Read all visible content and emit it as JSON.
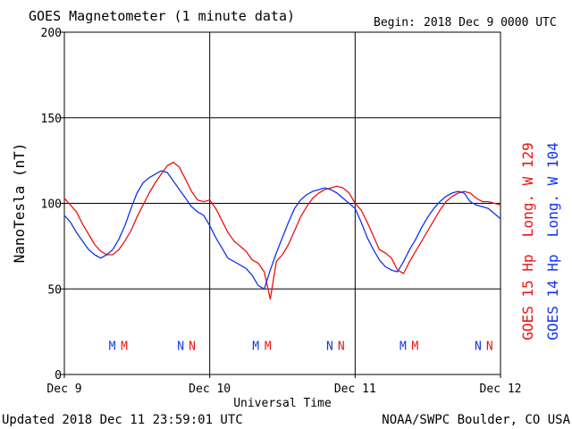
{
  "chart_data": {
    "type": "line",
    "title": "GOES Magnetometer (1 minute data)",
    "begin_label": "Begin:",
    "begin_value": "2018 Dec 9 0000 UTC",
    "xlabel": "Universal Time",
    "ylabel": "NanoTesla (nT)",
    "ylim": [
      0,
      200
    ],
    "xlim": [
      0,
      72
    ],
    "x_unit": "hours since 2018 Dec 9 0000 UTC",
    "yticks": [
      "0",
      "50",
      "100",
      "150",
      "200"
    ],
    "xticks": [
      {
        "x": 0,
        "label": "Dec 9"
      },
      {
        "x": 24,
        "label": "Dec 10"
      },
      {
        "x": 48,
        "label": "Dec 11"
      },
      {
        "x": 72,
        "label": "Dec 12"
      }
    ],
    "grid": true,
    "series": [
      {
        "name": "GOES 15 Hp  Long. W 129",
        "color": "#ee1111",
        "x": [
          0,
          1,
          2,
          3,
          4,
          5,
          6,
          7,
          8,
          9,
          10,
          11,
          12,
          13,
          14,
          15,
          16,
          17,
          18,
          19,
          20,
          21,
          22,
          23,
          24,
          25,
          26,
          27,
          28,
          29,
          30,
          31,
          32,
          33,
          34,
          35,
          36,
          37,
          38,
          39,
          40,
          41,
          42,
          43,
          44,
          45,
          46,
          47,
          48,
          49,
          50,
          51,
          52,
          53,
          54,
          55,
          56,
          57,
          58,
          59,
          60,
          61,
          62,
          63,
          64,
          65,
          66,
          67,
          68,
          69,
          70,
          71,
          72
        ],
        "values": [
          103,
          99,
          95,
          88,
          82,
          76,
          72,
          70,
          70,
          73,
          78,
          84,
          92,
          99,
          106,
          112,
          117,
          122,
          124,
          121,
          114,
          107,
          102,
          101,
          102,
          97,
          90,
          83,
          78,
          75,
          72,
          67,
          65,
          60,
          44,
          66,
          70,
          76,
          84,
          92,
          98,
          103,
          106,
          108,
          109,
          110,
          109,
          106,
          100,
          96,
          89,
          81,
          73,
          71,
          68,
          61,
          59,
          66,
          72,
          78,
          84,
          90,
          96,
          101,
          104,
          106,
          107,
          106,
          103,
          101,
          101,
          100,
          99
        ]
      },
      {
        "name": "GOES 14 Hp  Long. W 104",
        "color": "#1133ee",
        "x": [
          0,
          1,
          2,
          3,
          4,
          5,
          6,
          7,
          8,
          9,
          10,
          11,
          12,
          13,
          14,
          15,
          16,
          17,
          18,
          19,
          20,
          21,
          22,
          23,
          24,
          25,
          26,
          27,
          28,
          29,
          30,
          31,
          32,
          33,
          34,
          35,
          36,
          37,
          38,
          39,
          40,
          41,
          42,
          43,
          44,
          45,
          46,
          47,
          48,
          49,
          50,
          51,
          52,
          53,
          54,
          55,
          56,
          57,
          58,
          59,
          60,
          61,
          62,
          63,
          64,
          65,
          66,
          67,
          68,
          69,
          70,
          71,
          72
        ],
        "values": [
          93,
          89,
          83,
          78,
          73,
          70,
          68,
          70,
          73,
          79,
          87,
          97,
          106,
          112,
          115,
          117,
          119,
          118,
          113,
          108,
          103,
          98,
          95,
          93,
          87,
          80,
          74,
          68,
          66,
          64,
          62,
          58,
          52,
          50,
          61,
          71,
          80,
          89,
          97,
          102,
          105,
          107,
          108,
          109,
          108,
          106,
          103,
          100,
          97,
          89,
          80,
          73,
          67,
          63,
          61,
          60,
          66,
          73,
          79,
          86,
          92,
          97,
          101,
          104,
          106,
          107,
          106,
          101,
          99,
          98,
          97,
          94,
          91
        ]
      }
    ],
    "annotations": [
      {
        "x": 7.9,
        "text": "M",
        "color": "#1133ee"
      },
      {
        "x": 9.9,
        "text": "M",
        "color": "#ee1111"
      },
      {
        "x": 19.2,
        "text": "N",
        "color": "#1133ee"
      },
      {
        "x": 21.1,
        "text": "N",
        "color": "#ee1111"
      },
      {
        "x": 31.6,
        "text": "M",
        "color": "#1133ee"
      },
      {
        "x": 33.6,
        "text": "M",
        "color": "#ee1111"
      },
      {
        "x": 43.8,
        "text": "N",
        "color": "#1133ee"
      },
      {
        "x": 45.7,
        "text": "N",
        "color": "#ee1111"
      },
      {
        "x": 55.9,
        "text": "M",
        "color": "#1133ee"
      },
      {
        "x": 57.9,
        "text": "M",
        "color": "#ee1111"
      },
      {
        "x": 68.3,
        "text": "N",
        "color": "#1133ee"
      },
      {
        "x": 70.2,
        "text": "N",
        "color": "#ee1111"
      }
    ],
    "annotation_y": 17
  },
  "footer": {
    "updated": "Updated 2018 Dec 11 23:59:01 UTC",
    "credit": "NOAA/SWPC Boulder, CO USA"
  }
}
